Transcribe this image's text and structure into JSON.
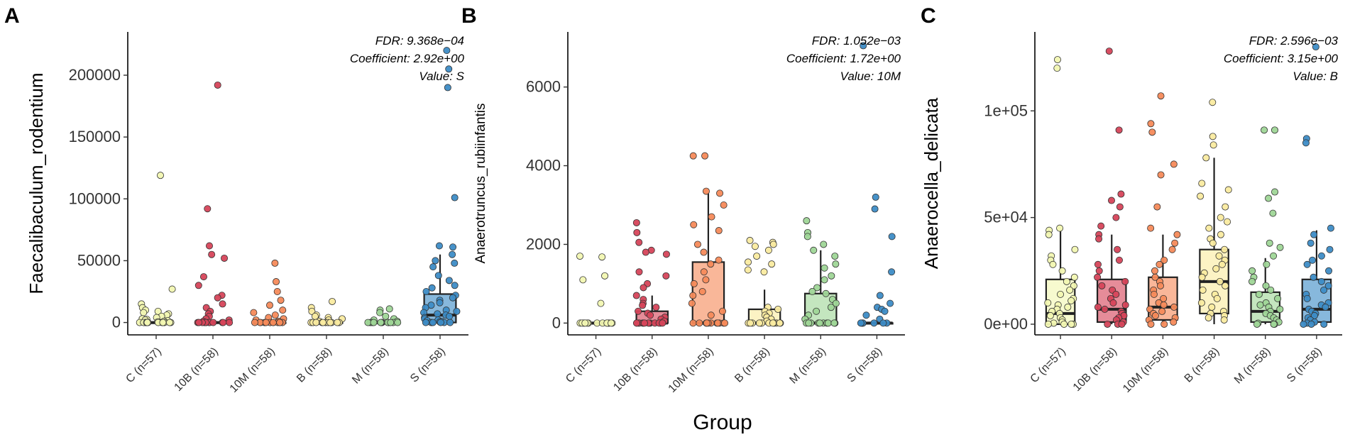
{
  "x_title": "Group",
  "colors": {
    "C": "#f2f7b2",
    "10B": "#d6455a",
    "10M": "#f58a5a",
    "B": "#faeba0",
    "M": "#9fd697",
    "S": "#3d8cc6"
  },
  "chart_data": [
    {
      "type": "box",
      "panel_label": "A",
      "ylabel": "Faecalibaculum_rodentium",
      "ylim": [
        -10000,
        235000
      ],
      "yticks": [
        0,
        50000,
        100000,
        150000,
        200000
      ],
      "ytick_labels": [
        "0",
        "50000",
        "100000",
        "150000",
        "200000"
      ],
      "categories": [
        "C (n=57)",
        "10B (n=58)",
        "10M (n=58)",
        "B (n=58)",
        "M (n=58)",
        "S (n=58)"
      ],
      "annotation": [
        "FDR: 9.368e−04",
        "Coefficient: 2.92e+00",
        "Value: S"
      ],
      "boxes": [
        {
          "group": "C",
          "q1": 0,
          "median": 0,
          "q3": 0,
          "whisker_low": 0,
          "whisker_high": 0,
          "points": [
            119000,
            27000,
            15000,
            12000,
            10000,
            9000,
            8000,
            7000,
            6000,
            5000,
            4000,
            3000,
            2500,
            2000,
            1500,
            1000,
            500,
            0,
            0,
            0,
            0,
            0,
            0,
            0,
            0,
            0,
            0,
            0,
            0,
            0
          ]
        },
        {
          "group": "10B",
          "q1": 0,
          "median": 0,
          "q3": 0,
          "whisker_low": 0,
          "whisker_high": 0,
          "points": [
            192000,
            92000,
            62000,
            55000,
            52000,
            37000,
            30000,
            22000,
            20000,
            15000,
            12000,
            9000,
            7000,
            5000,
            3000,
            2000,
            1000,
            0,
            0,
            0,
            0,
            0,
            0,
            0,
            0,
            0,
            0,
            0,
            0,
            0
          ]
        },
        {
          "group": "10M",
          "q1": 0,
          "median": 0,
          "q3": 0,
          "whisker_low": 0,
          "whisker_high": 0,
          "points": [
            48000,
            33000,
            25000,
            18000,
            14000,
            10000,
            8000,
            6000,
            4000,
            3000,
            2000,
            1000,
            0,
            0,
            0,
            0,
            0,
            0,
            0,
            0,
            0,
            0,
            0,
            0,
            0
          ]
        },
        {
          "group": "B",
          "q1": 0,
          "median": 0,
          "q3": 0,
          "whisker_low": 0,
          "whisker_high": 0,
          "points": [
            17000,
            12000,
            9000,
            6000,
            5000,
            4000,
            3000,
            2000,
            1000,
            0,
            0,
            0,
            0,
            0,
            0,
            0,
            0,
            0,
            0,
            0
          ]
        },
        {
          "group": "M",
          "q1": 0,
          "median": 0,
          "q3": 0,
          "whisker_low": 0,
          "whisker_high": 0,
          "points": [
            11000,
            10000,
            8000,
            5000,
            3000,
            2000,
            1000,
            0,
            0,
            0,
            0,
            0,
            0,
            0,
            0,
            0,
            0,
            0,
            0,
            0
          ]
        },
        {
          "group": "S",
          "q1": 0,
          "median": 6000,
          "q3": 23000,
          "whisker_low": 0,
          "whisker_high": 55000,
          "points": [
            220000,
            205000,
            190000,
            101000,
            62000,
            61000,
            55000,
            50000,
            48000,
            45000,
            38000,
            34000,
            30000,
            28000,
            25000,
            22000,
            20000,
            18000,
            16000,
            14000,
            12000,
            10000,
            9000,
            8000,
            7000,
            6000,
            5000,
            4000,
            3000,
            2000,
            1500,
            1000,
            500,
            0,
            0,
            0,
            0,
            0,
            0,
            0
          ]
        }
      ]
    },
    {
      "type": "box",
      "panel_label": "B",
      "ylabel": "Anaerotruncus_rubiinfantis",
      "ylim": [
        -300,
        7400
      ],
      "yticks": [
        0,
        2000,
        4000,
        6000
      ],
      "ytick_labels": [
        "0",
        "2000",
        "4000",
        "6000"
      ],
      "categories": [
        "C (n=57)",
        "10B (n=58)",
        "10M (n=58)",
        "B (n=58)",
        "M (n=58)",
        "S (n=58)"
      ],
      "annotation": [
        "FDR: 1.052e−03",
        "Coefficient: 1.72e+00",
        "Value: 10M"
      ],
      "boxes": [
        {
          "group": "C",
          "q1": 0,
          "median": 0,
          "q3": 0,
          "whisker_low": 0,
          "whisker_high": 0,
          "points": [
            1700,
            1680,
            1200,
            1100,
            500,
            0,
            0,
            0,
            0,
            0,
            0,
            0,
            0,
            0,
            0,
            0,
            0,
            0,
            0,
            0
          ]
        },
        {
          "group": "10B",
          "q1": 0,
          "median": 0,
          "q3": 300,
          "whisker_low": 0,
          "whisker_high": 700,
          "points": [
            2550,
            2300,
            2050,
            1850,
            1800,
            1750,
            1300,
            1200,
            1000,
            900,
            700,
            600,
            500,
            450,
            400,
            300,
            250,
            200,
            150,
            100,
            50,
            0,
            0,
            0,
            0,
            0,
            0,
            0,
            0,
            0,
            0,
            0,
            0,
            0,
            0
          ]
        },
        {
          "group": "10M",
          "q1": 0,
          "median": 0,
          "q3": 1550,
          "whisker_low": 0,
          "whisker_high": 3300,
          "points": [
            4250,
            4250,
            3350,
            3300,
            3000,
            2700,
            2500,
            2350,
            2000,
            1800,
            1600,
            1500,
            1300,
            1100,
            1000,
            800,
            700,
            500,
            300,
            200,
            0,
            0,
            0,
            0,
            0,
            0,
            0,
            0,
            0,
            0,
            0,
            0
          ]
        },
        {
          "group": "B",
          "q1": 0,
          "median": 0,
          "q3": 350,
          "whisker_low": 0,
          "whisker_high": 850,
          "points": [
            2100,
            2050,
            2000,
            1950,
            1850,
            1700,
            1550,
            1500,
            1350,
            1300,
            400,
            350,
            300,
            250,
            200,
            150,
            100,
            50,
            0,
            0,
            0,
            0,
            0,
            0,
            0,
            0,
            0,
            0,
            0,
            0
          ]
        },
        {
          "group": "M",
          "q1": 0,
          "median": 0,
          "q3": 750,
          "whisker_low": 0,
          "whisker_high": 1850,
          "points": [
            2600,
            2300,
            2200,
            2000,
            1850,
            1700,
            1500,
            1400,
            1200,
            1100,
            900,
            800,
            750,
            600,
            500,
            400,
            300,
            200,
            100,
            0,
            0,
            0,
            0,
            0,
            0,
            0,
            0,
            0,
            0,
            0
          ]
        },
        {
          "group": "S",
          "q1": 0,
          "median": 0,
          "q3": 0,
          "whisker_low": 0,
          "whisker_high": 0,
          "points": [
            7050,
            3200,
            2900,
            2200,
            1300,
            700,
            500,
            400,
            350,
            300,
            200,
            100,
            0,
            0,
            0,
            0,
            0,
            0,
            0,
            0
          ]
        }
      ]
    },
    {
      "type": "box",
      "panel_label": "C",
      "ylabel": "Anaerocella_delicata",
      "ylim": [
        -5000,
        137000
      ],
      "yticks": [
        0,
        50000,
        100000
      ],
      "ytick_labels": [
        "0e+00",
        "5e+04",
        "1e+05"
      ],
      "categories": [
        "C (n=57)",
        "10B (n=58)",
        "10M (n=58)",
        "B (n=58)",
        "M (n=58)",
        "S (n=58)"
      ],
      "annotation": [
        "FDR: 2.596e−03",
        "Coefficient: 3.15e+00",
        "Value: B"
      ],
      "boxes": [
        {
          "group": "C",
          "q1": 0,
          "median": 5000,
          "q3": 21000,
          "whisker_low": 0,
          "whisker_high": 44000,
          "points": [
            124000,
            120000,
            45000,
            44000,
            42000,
            35000,
            32000,
            30000,
            28000,
            25000,
            22000,
            20000,
            18000,
            16000,
            14000,
            12000,
            11000,
            10000,
            9000,
            8000,
            7000,
            6000,
            5000,
            4000,
            3000,
            2000,
            1000,
            500,
            0,
            0,
            0,
            0
          ]
        },
        {
          "group": "10B",
          "q1": 1000,
          "median": 7000,
          "q3": 21000,
          "whisker_low": 0,
          "whisker_high": 42000,
          "points": [
            128000,
            91000,
            61000,
            58000,
            55000,
            50000,
            46000,
            42000,
            40000,
            35000,
            30000,
            28000,
            25000,
            22000,
            20000,
            18000,
            16000,
            14000,
            12000,
            10000,
            9000,
            8000,
            7000,
            6000,
            5000,
            4000,
            3000,
            2000,
            1000,
            0,
            0,
            0
          ]
        },
        {
          "group": "10M",
          "q1": 2000,
          "median": 8000,
          "q3": 22000,
          "whisker_low": 0,
          "whisker_high": 42000,
          "points": [
            107000,
            94000,
            90000,
            75000,
            70000,
            55000,
            45000,
            42000,
            38000,
            35000,
            30000,
            28000,
            25000,
            22000,
            20000,
            18000,
            16000,
            14000,
            12000,
            10000,
            9000,
            8000,
            7000,
            6000,
            5000,
            4000,
            3000,
            2000,
            1000,
            0,
            0
          ]
        },
        {
          "group": "B",
          "q1": 5000,
          "median": 20000,
          "q3": 35000,
          "whisker_low": 0,
          "whisker_high": 78000,
          "points": [
            104000,
            88000,
            84000,
            78000,
            66000,
            63000,
            60000,
            55000,
            50000,
            48000,
            45000,
            42000,
            40000,
            38000,
            35000,
            32000,
            30000,
            28000,
            26000,
            24000,
            22000,
            20000,
            18000,
            16000,
            14000,
            12000,
            10000,
            8000,
            6000,
            5000,
            4000,
            3000,
            2000
          ]
        },
        {
          "group": "M",
          "q1": 1000,
          "median": 6000,
          "q3": 15000,
          "whisker_low": 0,
          "whisker_high": 31000,
          "points": [
            91000,
            91000,
            62000,
            59000,
            52000,
            38000,
            36000,
            32000,
            28000,
            25000,
            22000,
            20000,
            18000,
            16000,
            14000,
            12000,
            10000,
            9000,
            8000,
            7000,
            6000,
            5000,
            4000,
            3000,
            2000,
            1000,
            500,
            0,
            0,
            0
          ]
        },
        {
          "group": "S",
          "q1": 1000,
          "median": 7000,
          "q3": 21000,
          "whisker_low": 0,
          "whisker_high": 44000,
          "points": [
            130000,
            87000,
            85000,
            45000,
            42000,
            38000,
            35000,
            32000,
            30000,
            28000,
            25000,
            22000,
            20000,
            18000,
            16000,
            14000,
            12000,
            10000,
            9000,
            8000,
            7000,
            6000,
            5000,
            4000,
            3000,
            2000,
            1000,
            500,
            0,
            0,
            0
          ]
        }
      ]
    }
  ]
}
